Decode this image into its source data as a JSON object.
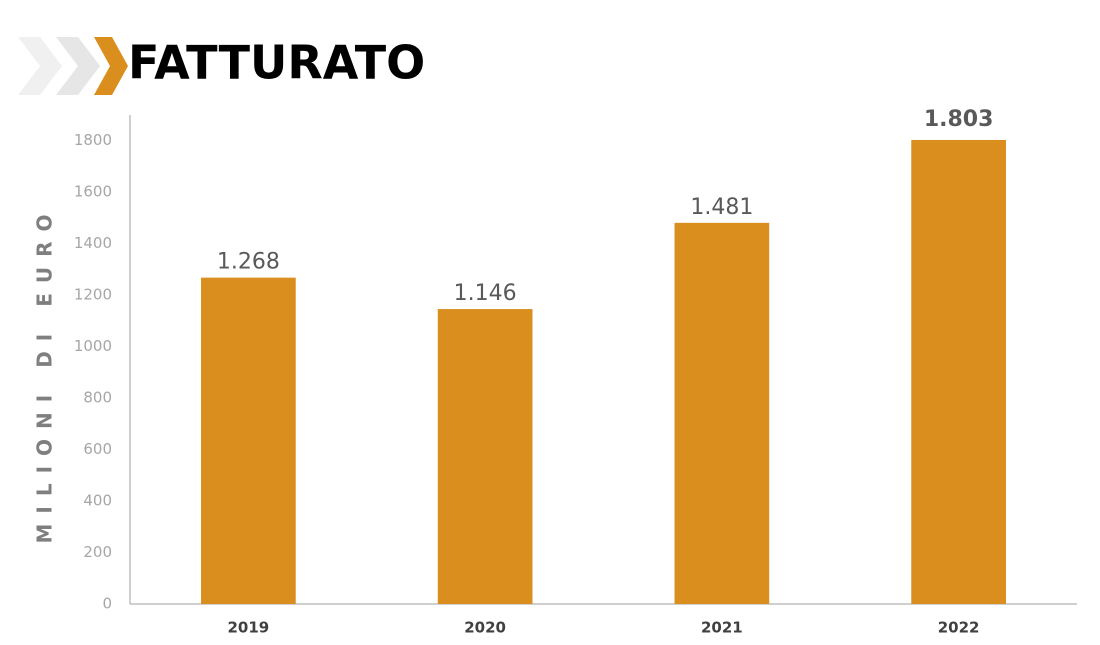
{
  "chart_data": {
    "type": "bar",
    "title": "FATTURATO",
    "y_axis_label": "MILIONI DI EURO",
    "categories": [
      "2019",
      "2020",
      "2021",
      "2022"
    ],
    "values": [
      1268,
      1146,
      1481,
      1803
    ],
    "value_labels": [
      "1.268",
      "1.146",
      "1.481",
      "1.803"
    ],
    "color": "#d98e1d",
    "ylim": [
      0,
      1900
    ],
    "yticks": [
      0,
      200,
      400,
      600,
      800,
      1000,
      1200,
      1400,
      1600,
      1800
    ],
    "grid": false
  }
}
